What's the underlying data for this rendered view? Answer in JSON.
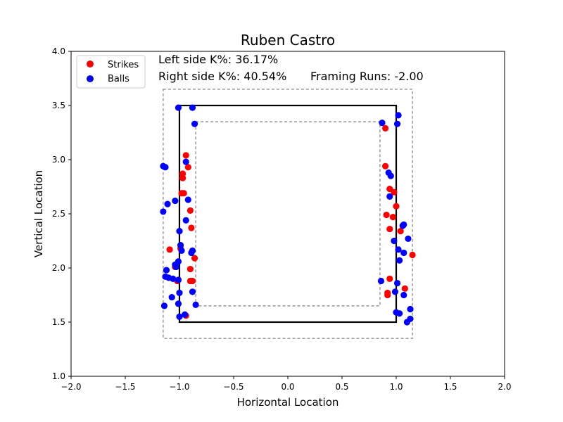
{
  "chart_data": {
    "type": "scatter",
    "title": "Ruben Castro",
    "xlabel": "Horizontal Location",
    "ylabel": "Vertical Location",
    "xlim": [
      -2.0,
      2.0
    ],
    "ylim": [
      1.0,
      4.0
    ],
    "xticks": [
      "−2.0",
      "−1.5",
      "−1.0",
      "−0.5",
      "0.0",
      "0.5",
      "1.0",
      "1.5",
      "2.0"
    ],
    "yticks": [
      "1.0",
      "1.5",
      "2.0",
      "2.5",
      "3.0",
      "3.5",
      "4.0"
    ],
    "xtick_values": [
      -2.0,
      -1.5,
      -1.0,
      -0.5,
      0.0,
      0.5,
      1.0,
      1.5,
      2.0
    ],
    "ytick_values": [
      1.0,
      1.5,
      2.0,
      2.5,
      3.0,
      3.5,
      4.0
    ],
    "grid": false,
    "legend_position": "top-left",
    "annotations": {
      "left_k": "Left side K%: 36.17%",
      "right_k": "Right side K%: 40.54%",
      "framing": "Framing Runs: -2.00"
    },
    "zones": {
      "strike_zone": {
        "x": [
          -1.0,
          1.0
        ],
        "y": [
          1.5,
          3.5
        ]
      },
      "outer_zone": {
        "x": [
          -1.15,
          1.15
        ],
        "y": [
          1.35,
          3.65
        ]
      },
      "inner_zone": {
        "x": [
          -0.85,
          0.85
        ],
        "y": [
          1.65,
          3.35
        ]
      }
    },
    "series": [
      {
        "name": "Strikes",
        "color": "#ff0000",
        "points": [
          [
            -0.94,
            3.04
          ],
          [
            -0.97,
            2.87
          ],
          [
            -0.97,
            2.83
          ],
          [
            -0.92,
            2.93
          ],
          [
            -0.98,
            2.69
          ],
          [
            -0.96,
            2.69
          ],
          [
            -0.9,
            2.53
          ],
          [
            -0.89,
            2.37
          ],
          [
            -1.09,
            2.17
          ],
          [
            -0.99,
            2.18
          ],
          [
            -0.86,
            2.09
          ],
          [
            -1.04,
            2.01
          ],
          [
            -0.9,
            1.99
          ],
          [
            -0.9,
            1.88
          ],
          [
            -0.88,
            1.88
          ],
          [
            -1.02,
            1.88
          ],
          [
            -0.94,
            1.56
          ],
          [
            0.9,
            3.29
          ],
          [
            0.9,
            2.94
          ],
          [
            0.94,
            2.73
          ],
          [
            0.98,
            2.7
          ],
          [
            1.0,
            2.57
          ],
          [
            0.91,
            2.49
          ],
          [
            0.97,
            2.47
          ],
          [
            0.94,
            2.36
          ],
          [
            1.04,
            2.34
          ],
          [
            1.15,
            2.12
          ],
          [
            0.94,
            1.9
          ],
          [
            1.08,
            1.81
          ],
          [
            0.92,
            1.77
          ],
          [
            0.92,
            1.75
          ]
        ]
      },
      {
        "name": "Balls",
        "color": "#0000ff",
        "points": [
          [
            -1.01,
            3.48
          ],
          [
            -0.88,
            3.48
          ],
          [
            -0.86,
            3.33
          ],
          [
            -0.94,
            2.98
          ],
          [
            -1.15,
            2.94
          ],
          [
            -1.13,
            2.93
          ],
          [
            -1.04,
            2.62
          ],
          [
            -0.92,
            2.63
          ],
          [
            -1.11,
            2.59
          ],
          [
            -1.15,
            2.52
          ],
          [
            -0.94,
            2.44
          ],
          [
            -1.0,
            2.34
          ],
          [
            -0.99,
            2.21
          ],
          [
            -0.98,
            2.16
          ],
          [
            -0.88,
            2.16
          ],
          [
            -0.89,
            2.14
          ],
          [
            -1.01,
            2.06
          ],
          [
            -1.04,
            2.03
          ],
          [
            -1.03,
            2.01
          ],
          [
            -1.12,
            1.98
          ],
          [
            -1.13,
            1.92
          ],
          [
            -1.1,
            1.91
          ],
          [
            -1.06,
            1.9
          ],
          [
            -1.01,
            1.89
          ],
          [
            -0.88,
            1.78
          ],
          [
            -1.0,
            1.77
          ],
          [
            -1.07,
            1.73
          ],
          [
            -0.85,
            1.66
          ],
          [
            -1.01,
            1.67
          ],
          [
            -1.14,
            1.65
          ],
          [
            -0.95,
            1.57
          ],
          [
            -1.0,
            1.55
          ],
          [
            0.87,
            3.34
          ],
          [
            1.02,
            3.41
          ],
          [
            1.01,
            3.33
          ],
          [
            0.93,
            2.88
          ],
          [
            0.95,
            2.85
          ],
          [
            0.94,
            2.66
          ],
          [
            1.07,
            2.4
          ],
          [
            1.06,
            2.39
          ],
          [
            1.11,
            2.27
          ],
          [
            0.98,
            2.25
          ],
          [
            1.02,
            2.17
          ],
          [
            1.07,
            2.14
          ],
          [
            1.03,
            2.07
          ],
          [
            0.86,
            1.88
          ],
          [
            1.01,
            1.86
          ],
          [
            0.99,
            1.78
          ],
          [
            1.07,
            1.75
          ],
          [
            1.13,
            1.62
          ],
          [
            1.0,
            1.59
          ],
          [
            1.03,
            1.58
          ],
          [
            1.13,
            1.53
          ],
          [
            1.1,
            1.5
          ]
        ]
      }
    ]
  }
}
